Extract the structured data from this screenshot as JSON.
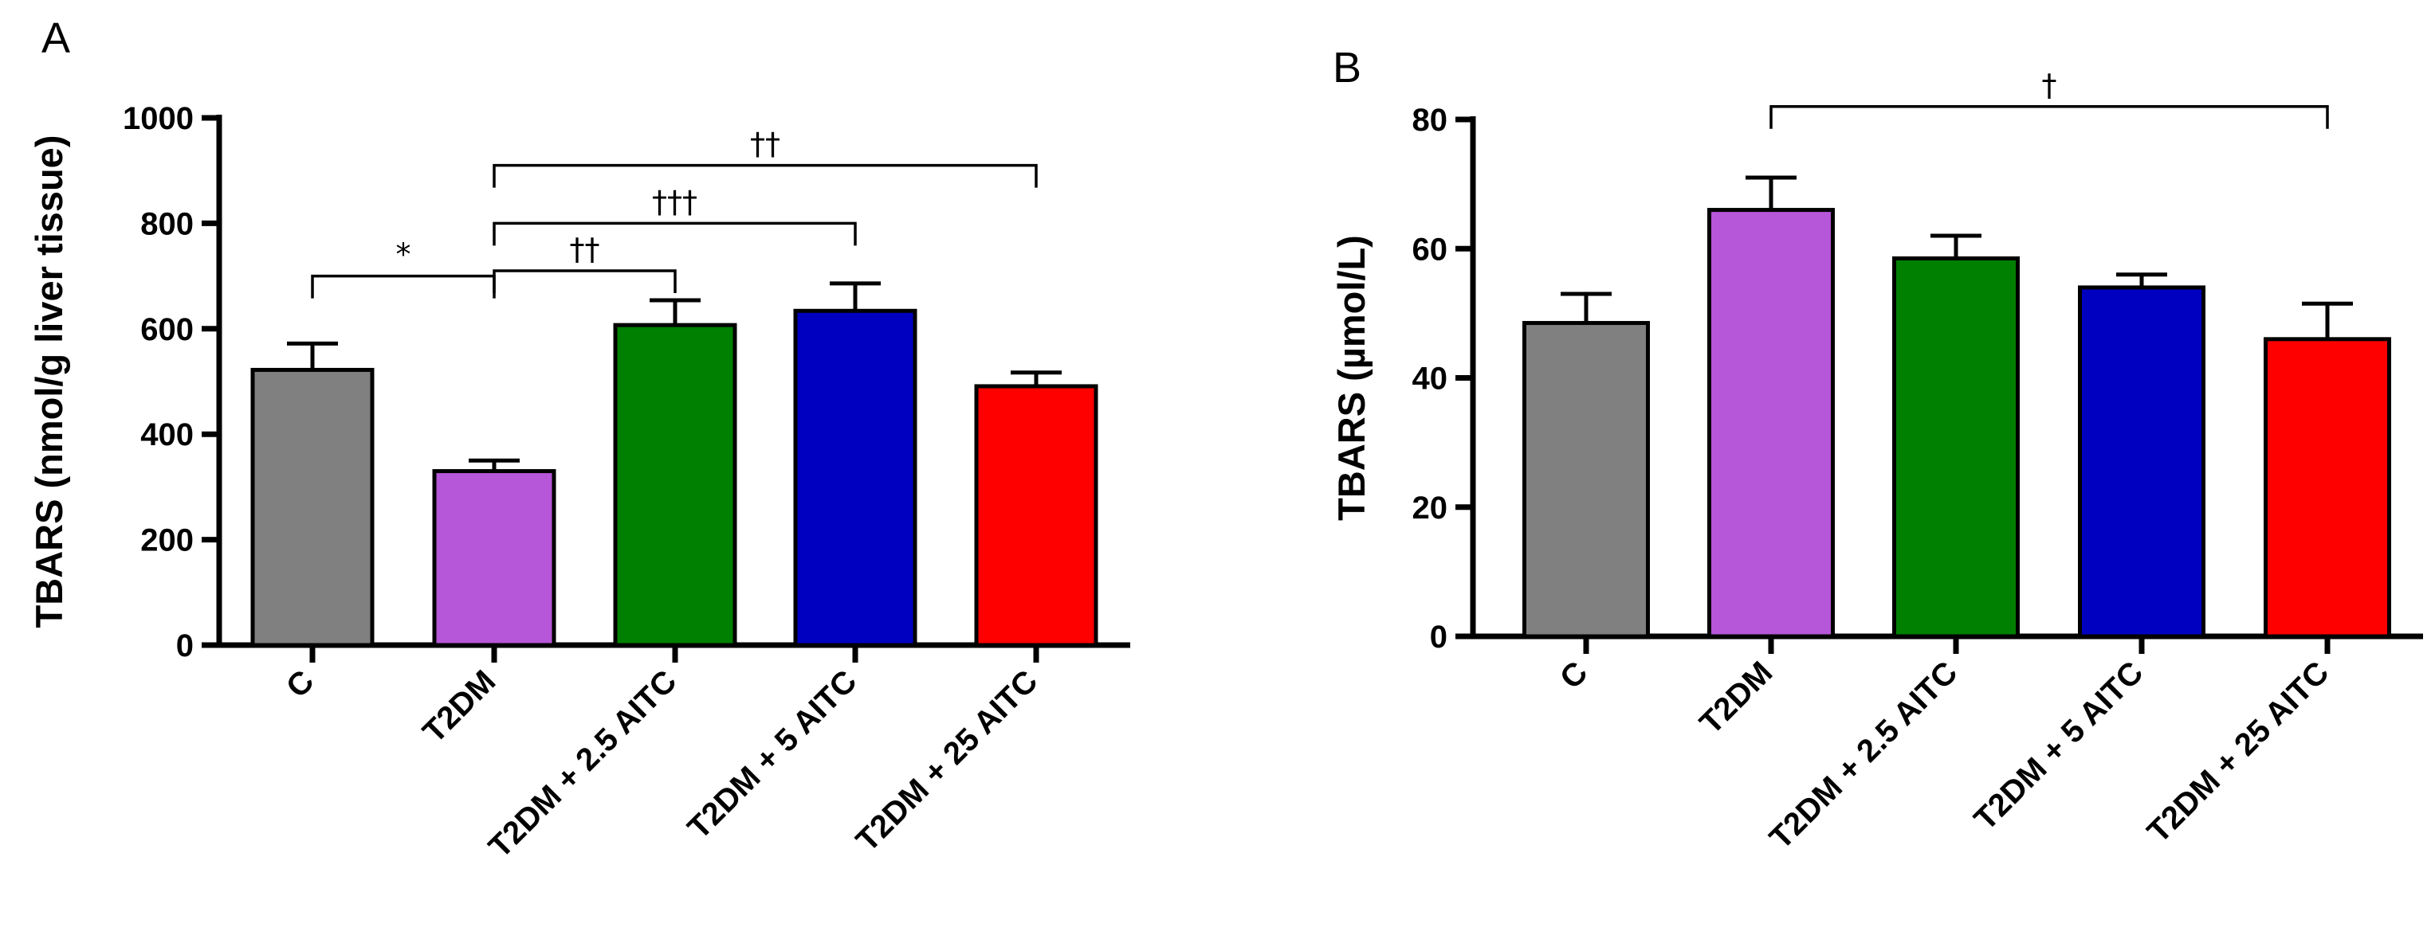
{
  "chart_data": [
    {
      "type": "bar",
      "panel": "A",
      "ylabel": "TBARS (nmol/g liver tissue)",
      "ylim": [
        0,
        1000
      ],
      "yticks": [
        0,
        200,
        400,
        600,
        800,
        1000
      ],
      "categories": [
        "C",
        "T2DM",
        "T2DM + 2.5 AITC",
        "T2DM + 5 AITC",
        "T2DM + 25 AITC"
      ],
      "values": [
        522,
        330,
        607,
        634,
        491
      ],
      "errors": [
        50,
        20,
        47,
        52,
        26
      ],
      "colors": [
        "#808080",
        "#b656d8",
        "#008000",
        "#0000c0",
        "#ff0000"
      ],
      "significance": [
        {
          "from": 0,
          "to": 1,
          "label": "*",
          "level": 700
        },
        {
          "from": 1,
          "to": 2,
          "label": "††",
          "level": 710
        },
        {
          "from": 1,
          "to": 3,
          "label": "†††",
          "level": 800
        },
        {
          "from": 1,
          "to": 4,
          "label": "††",
          "level": 910
        }
      ]
    },
    {
      "type": "bar",
      "panel": "B",
      "ylabel": "TBARS (µmol/L)",
      "ylim": [
        0,
        80
      ],
      "yticks": [
        0,
        20,
        40,
        60,
        80
      ],
      "categories": [
        "C",
        "T2DM",
        "T2DM + 2.5 AITC",
        "T2DM + 5 AITC",
        "T2DM + 25 AITC"
      ],
      "values": [
        48.5,
        66,
        58.5,
        54,
        46
      ],
      "errors": [
        4.5,
        5,
        3.5,
        2,
        5.5
      ],
      "colors": [
        "#808080",
        "#b656d8",
        "#008000",
        "#0000c0",
        "#ff0000"
      ],
      "significance": [
        {
          "from": 1,
          "to": 4,
          "label": "†",
          "level": 82
        }
      ]
    }
  ]
}
